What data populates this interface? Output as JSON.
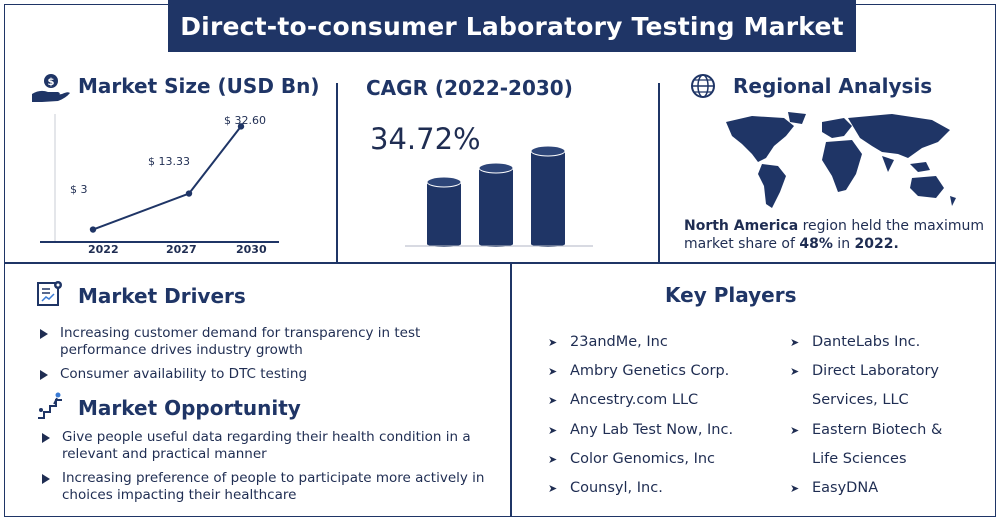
{
  "title": "Direct-to-consumer Laboratory Testing Market",
  "market_size": {
    "heading": "Market Size (USD Bn)",
    "icon": "money-hand-icon",
    "chart_data": {
      "type": "line",
      "categories": [
        "2022",
        "2027",
        "2030"
      ],
      "values": [
        3,
        13.33,
        32.6
      ],
      "value_labels": [
        "$ 3",
        "$ 13.33",
        "$ 32.60"
      ],
      "ylim": [
        0,
        35
      ]
    }
  },
  "cagr": {
    "heading": "CAGR (2022-2030)",
    "value": "34.72%",
    "icon": "cylinder-bars-icon"
  },
  "regional": {
    "heading": "Regional Analysis",
    "icon": "globe-icon",
    "region": "North America",
    "text_mid": " region held the maximum market share of ",
    "share": "48%",
    "text_in": " in ",
    "year": "2022.",
    "map_icon": "world-map-icon"
  },
  "drivers": {
    "heading": "Market Drivers",
    "icon": "report-gear-icon",
    "items": [
      "Increasing customer demand for transparency in test performance drives industry growth",
      "Consumer availability to DTC testing"
    ]
  },
  "opportunity": {
    "heading": "Market Opportunity",
    "icon": "stairs-climber-icon",
    "items": [
      "Give people useful data regarding their health condition in a relevant and practical manner",
      "Increasing preference of people to participate more actively in choices impacting their healthcare"
    ]
  },
  "key_players": {
    "heading": "Key Players",
    "left": [
      "23andMe, Inc",
      "Ambry Genetics Corp.",
      "Ancestry.com LLC",
      "Any Lab Test Now, Inc.",
      "Color Genomics, Inc",
      "Counsyl, Inc."
    ],
    "right": [
      "DanteLabs Inc.",
      "Direct Laboratory",
      "Services, LLC",
      "Eastern Biotech &",
      "Life Sciences",
      "EasyDNA"
    ]
  },
  "colors": {
    "navy": "#1f3566",
    "text": "#1f2d52",
    "background": "#ffffff"
  }
}
